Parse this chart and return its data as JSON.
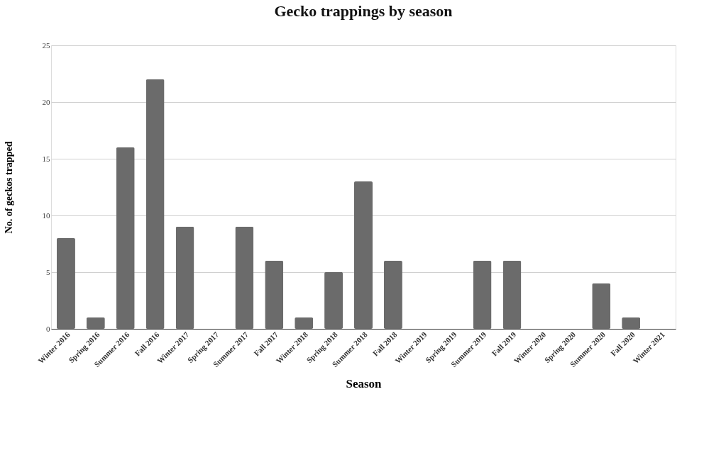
{
  "chart_data": {
    "type": "bar",
    "title": "Gecko trappings by season",
    "xlabel": "Season",
    "ylabel": "No. of geckos trapped",
    "categories": [
      "Winter 2016",
      "Spring 2016",
      "Summer 2016",
      "Fall 2016",
      "Winter 2017",
      "Spring 2017",
      "Summer 2017",
      "Fall 2017",
      "Winter 2018",
      "Spring 2018",
      "Summer 2018",
      "Fall 2018",
      "Winter 2019",
      "Spring 2019",
      "Summer 2019",
      "Fall 2019",
      "Winter 2020",
      "Spring 2020",
      "Summer 2020",
      "Fall 2020",
      "Winter 2021"
    ],
    "values": [
      8,
      1,
      16,
      22,
      9,
      0,
      9,
      6,
      1,
      5,
      13,
      6,
      0,
      0,
      6,
      6,
      0,
      0,
      4,
      1,
      0
    ],
    "color": "#6b6b6b",
    "ylim": [
      0,
      25
    ],
    "yticks": [
      0,
      5,
      10,
      15,
      20,
      25
    ],
    "grid": "y"
  }
}
